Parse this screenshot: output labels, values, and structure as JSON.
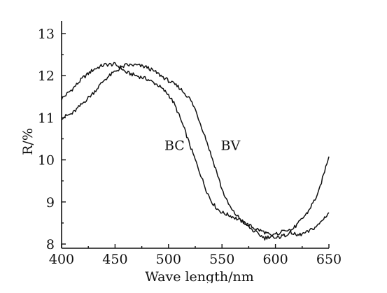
{
  "chart_data": {
    "type": "line",
    "title": "",
    "xlabel": "Wave length/nm",
    "ylabel": "R/%",
    "xlim": [
      400,
      650
    ],
    "ylim": [
      7.9,
      13.3
    ],
    "xticks": [
      400,
      450,
      500,
      550,
      600,
      650
    ],
    "yticks": [
      8,
      9,
      10,
      11,
      12,
      13
    ],
    "grid": false,
    "series": [
      {
        "name": "BC",
        "x": [
          400,
          410,
          420,
          430,
          440,
          450,
          455,
          460,
          470,
          480,
          490,
          500,
          505,
          510,
          515,
          520,
          525,
          530,
          535,
          540,
          545,
          550,
          560,
          570,
          580,
          590,
          600,
          610,
          620,
          630,
          640,
          650
        ],
        "values": [
          11.45,
          11.68,
          11.95,
          12.15,
          12.26,
          12.27,
          12.2,
          12.08,
          12.0,
          11.92,
          11.78,
          11.55,
          11.35,
          11.05,
          10.72,
          10.35,
          10.0,
          9.65,
          9.3,
          9.02,
          8.85,
          8.75,
          8.65,
          8.52,
          8.38,
          8.28,
          8.13,
          8.22,
          8.45,
          8.75,
          9.2,
          10.1
        ]
      },
      {
        "name": "BV",
        "x": [
          400,
          410,
          420,
          430,
          440,
          450,
          460,
          470,
          480,
          490,
          500,
          510,
          520,
          525,
          530,
          535,
          540,
          545,
          550,
          555,
          560,
          570,
          580,
          590,
          600,
          610,
          620,
          630,
          640,
          650
        ],
        "values": [
          11.0,
          11.1,
          11.35,
          11.6,
          11.9,
          12.1,
          12.25,
          12.25,
          12.2,
          12.05,
          11.88,
          11.72,
          11.45,
          11.2,
          10.85,
          10.5,
          10.1,
          9.72,
          9.3,
          9.0,
          8.78,
          8.52,
          8.3,
          8.14,
          8.22,
          8.35,
          8.2,
          8.28,
          8.45,
          8.75
        ]
      }
    ]
  }
}
